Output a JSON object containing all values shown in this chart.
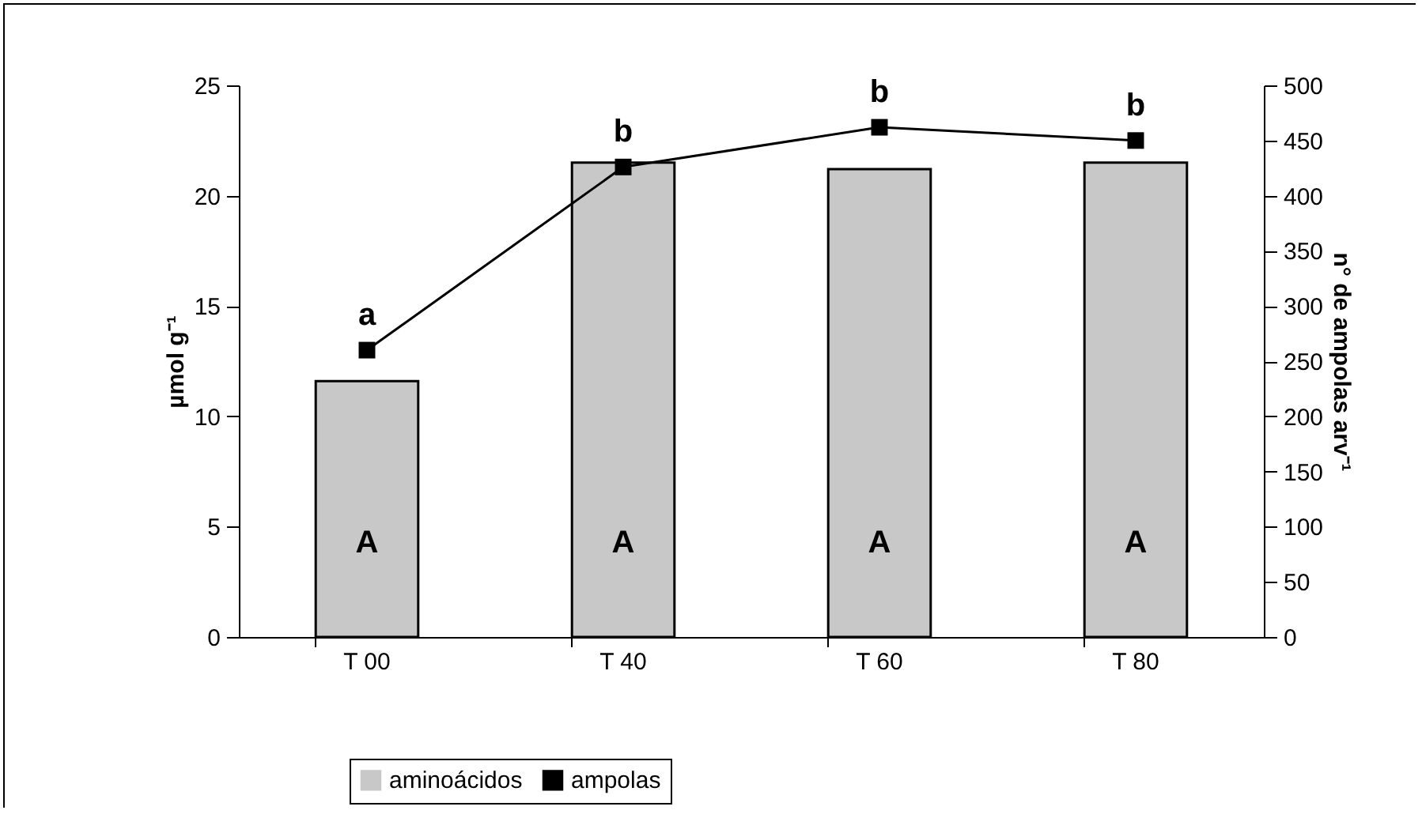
{
  "chart_data": {
    "type": "bar",
    "categories": [
      "T 00",
      "T 40",
      "T 60",
      "T 80"
    ],
    "series": [
      {
        "name": "aminoácidos",
        "color": "#c8c8c8",
        "values": [
          11.6,
          21.5,
          21.2,
          21.5
        ]
      },
      {
        "name": "ampolas",
        "type": "line",
        "axis": "y2",
        "color": "#000000",
        "values": [
          260,
          426,
          462,
          450
        ]
      }
    ],
    "ylabel": "µmol g⁻¹",
    "y2label": "n° de ampolas arv⁻¹",
    "ylim": [
      0,
      25
    ],
    "yticks": [
      0,
      5,
      10,
      15,
      20,
      25
    ],
    "y2lim": [
      0,
      500
    ],
    "y2ticks": [
      0,
      50,
      100,
      150,
      200,
      250,
      300,
      350,
      400,
      450,
      500
    ],
    "marker": "square",
    "legend": "bottom",
    "grid": false,
    "annotations": [
      "a",
      "b",
      "b",
      "b",
      "A",
      "A",
      "A",
      "A"
    ]
  }
}
